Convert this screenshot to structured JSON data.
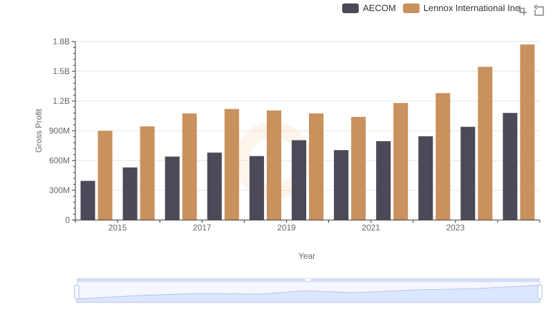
{
  "chart_data": {
    "type": "bar",
    "categories": [
      "2014",
      "2015",
      "2016",
      "2017",
      "2018",
      "2019",
      "2020",
      "2021",
      "2022",
      "2023",
      "2024"
    ],
    "x_tick_labels": [
      "2015",
      "2017",
      "2019",
      "2021",
      "2023"
    ],
    "xlabel": "Year",
    "ylabel": "Gross Profit",
    "ylim": [
      0,
      1800000000
    ],
    "y_tick_labels": [
      "0",
      "300M",
      "600M",
      "900M",
      "1.2B",
      "1.5B",
      "1.8B"
    ],
    "grid": true,
    "legend_position": "top-right",
    "series": [
      {
        "name": "AECOM",
        "color": "#4a4a58",
        "values": [
          395000000,
          530000000,
          640000000,
          680000000,
          645000000,
          805000000,
          705000000,
          795000000,
          845000000,
          940000000,
          1080000000
        ]
      },
      {
        "name": "Lennox International Inc.",
        "color": "#c9915d",
        "values": [
          900000000,
          945000000,
          1075000000,
          1120000000,
          1105000000,
          1075000000,
          1040000000,
          1180000000,
          1280000000,
          1545000000,
          1770000000
        ]
      }
    ]
  },
  "toolbox": {
    "zoom_icon": "zoom-select-icon",
    "reset_icon": "restore-icon"
  },
  "colors": {
    "grid": "#e6e6e6",
    "axis": "#333333",
    "slider_fill": "#dce6ff",
    "slider_border": "#a9b8e0"
  }
}
